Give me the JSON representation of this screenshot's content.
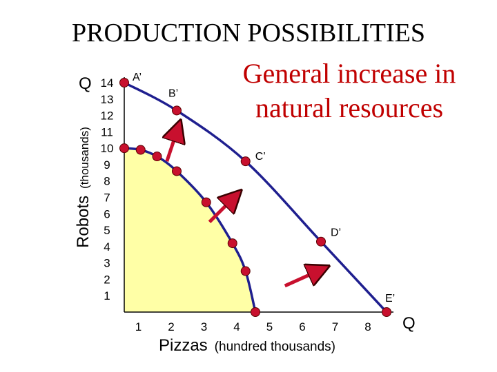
{
  "title": "PRODUCTION POSSIBILITIES",
  "annotation": [
    "General increase in",
    "natural resources"
  ],
  "colors": {
    "curve": "#1f1f8f",
    "fill": "#ffffa6",
    "point": "#c8102e",
    "arrow": "#c8102e",
    "annotation": "#c00000"
  },
  "chart_data": {
    "type": "line",
    "title": "PRODUCTION POSSIBILITIES",
    "xlabel": {
      "main": "Pizzas",
      "unit": "(hundred thousands)"
    },
    "ylabel": {
      "main": "Robots",
      "unit": "(thousands)"
    },
    "x_axis_letter": "Q",
    "y_axis_letter": "Q",
    "x_ticks": [
      "1",
      "2",
      "3",
      "4",
      "5",
      "6",
      "7",
      "8"
    ],
    "y_ticks": [
      "14",
      "13",
      "12",
      "11",
      "10",
      "9",
      "8",
      "7",
      "6",
      "5",
      "4",
      "3",
      "2",
      "1"
    ],
    "xlim": [
      0,
      8
    ],
    "ylim": [
      0,
      14
    ],
    "grid": false,
    "series": [
      {
        "values": [
          {
            "x": 0,
            "y": 10
          },
          {
            "x": 0.5,
            "y": 9.9
          },
          {
            "x": 1,
            "y": 9.5
          },
          {
            "x": 1.6,
            "y": 8.6
          },
          {
            "x": 2.5,
            "y": 6.7
          },
          {
            "x": 3.3,
            "y": 4.2
          },
          {
            "x": 3.7,
            "y": 2.5
          },
          {
            "x": 4,
            "y": 0
          }
        ]
      },
      {
        "values": [
          {
            "x": 0,
            "y": 14,
            "label": "A’"
          },
          {
            "x": 1.6,
            "y": 12.3,
            "label": "B’"
          },
          {
            "x": 3.7,
            "y": 9.2,
            "label": "C’"
          },
          {
            "x": 6,
            "y": 4.3,
            "label": "D’"
          },
          {
            "x": 8,
            "y": 0,
            "label": "E’"
          }
        ]
      }
    ],
    "arrows": [
      {
        "from": {
          "x": 1.3,
          "y": 9.2
        },
        "to": {
          "x": 1.6,
          "y": 11.0
        }
      },
      {
        "from": {
          "x": 2.6,
          "y": 5.5
        },
        "to": {
          "x": 3.3,
          "y": 6.9
        }
      },
      {
        "from": {
          "x": 4.9,
          "y": 1.6
        },
        "to": {
          "x": 5.9,
          "y": 2.5
        }
      }
    ]
  }
}
